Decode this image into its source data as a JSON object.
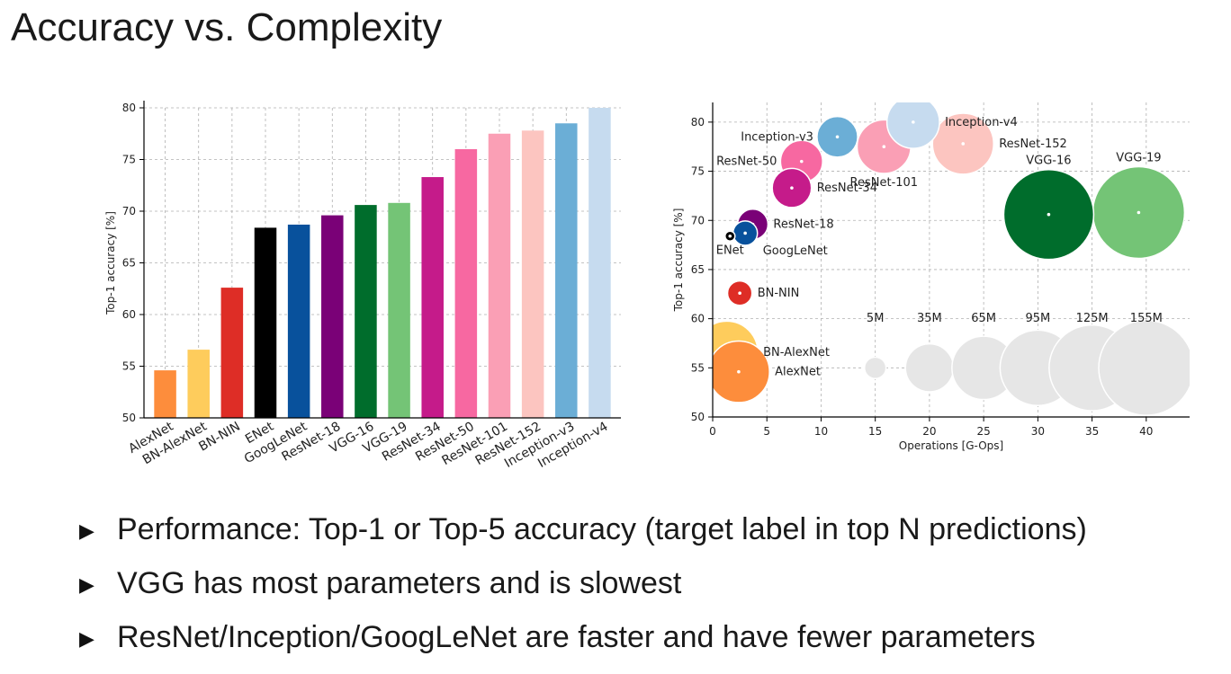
{
  "slide": {
    "title": "Accuracy vs. Complexity",
    "bullets": [
      "Performance: Top-1 or Top-5 accuracy (target label in top N predictions)",
      "VGG has most parameters and is slowest",
      "ResNet/Inception/GoogLeNet are faster and have fewer parameters"
    ]
  },
  "chart_data": [
    {
      "type": "bar",
      "ylabel": "Top-1 accuracy [%]",
      "ylim": [
        50,
        80
      ],
      "yticks": [
        "50",
        "55",
        "60",
        "65",
        "70",
        "75",
        "80"
      ],
      "grid": true,
      "categories": [
        "AlexNet",
        "BN-AlexNet",
        "BN-NIN",
        "ENet",
        "GoogLeNet",
        "ResNet-18",
        "VGG-16",
        "VGG-19",
        "ResNet-34",
        "ResNet-50",
        "ResNet-101",
        "ResNet-152",
        "Inception-v3",
        "Inception-v4"
      ],
      "values": [
        54.6,
        56.6,
        62.6,
        68.4,
        68.7,
        69.6,
        70.6,
        70.8,
        73.3,
        76.0,
        77.5,
        77.8,
        78.5,
        80.0
      ],
      "colors": [
        "#fd8d3c",
        "#fecc5c",
        "#de2d26",
        "#000000",
        "#08519c",
        "#7a0177",
        "#006d2c",
        "#74c476",
        "#c51b8a",
        "#f768a1",
        "#fa9fb5",
        "#fcc5c0",
        "#6baed6",
        "#c6dbef"
      ]
    },
    {
      "type": "scatter",
      "xlabel": "Operations [G-Ops]",
      "ylabel": "Top-1 accuracy [%]",
      "xlim": [
        0,
        44
      ],
      "ylim": [
        50,
        82
      ],
      "xticks": [
        "0",
        "5",
        "10",
        "15",
        "20",
        "25",
        "30",
        "35",
        "40"
      ],
      "yticks": [
        "50",
        "55",
        "60",
        "65",
        "70",
        "75",
        "80"
      ],
      "grid": true,
      "points": [
        {
          "name": "AlexNet",
          "x": 2.4,
          "y": 54.6,
          "params_m": 61,
          "color": "#fd8d3c",
          "label_pos": "right"
        },
        {
          "name": "BN-AlexNet",
          "x": 1.3,
          "y": 56.6,
          "params_m": 62,
          "color": "#fecc5c",
          "label_pos": "right"
        },
        {
          "name": "BN-NIN",
          "x": 2.5,
          "y": 62.6,
          "params_m": 7,
          "color": "#de2d26",
          "label_pos": "right"
        },
        {
          "name": "ENet",
          "x": 1.6,
          "y": 68.4,
          "params_m": 0.4,
          "color": "#000000",
          "label_pos": "below"
        },
        {
          "name": "GoogLeNet",
          "x": 3.0,
          "y": 68.7,
          "params_m": 7,
          "color": "#08519c",
          "label_pos": "below-right"
        },
        {
          "name": "ResNet-18",
          "x": 3.7,
          "y": 69.6,
          "params_m": 12,
          "color": "#7a0177",
          "label_pos": "right"
        },
        {
          "name": "ResNet-34",
          "x": 7.3,
          "y": 73.3,
          "params_m": 22,
          "color": "#c51b8a",
          "label_pos": "right"
        },
        {
          "name": "ResNet-50",
          "x": 8.2,
          "y": 76.0,
          "params_m": 26,
          "color": "#f768a1",
          "label_pos": "left"
        },
        {
          "name": "Inception-v3",
          "x": 11.5,
          "y": 78.5,
          "params_m": 24,
          "color": "#6baed6",
          "label_pos": "left"
        },
        {
          "name": "ResNet-101",
          "x": 15.8,
          "y": 77.5,
          "params_m": 45,
          "color": "#fa9fb5",
          "label_pos": "below"
        },
        {
          "name": "Inception-v4",
          "x": 18.5,
          "y": 80.0,
          "params_m": 43,
          "color": "#c6dbef",
          "label_pos": "right"
        },
        {
          "name": "ResNet-152",
          "x": 23.1,
          "y": 77.8,
          "params_m": 60,
          "color": "#fcc5c0",
          "label_pos": "right"
        },
        {
          "name": "VGG-16",
          "x": 31.0,
          "y": 70.6,
          "params_m": 138,
          "color": "#006d2c",
          "label_pos": "above"
        },
        {
          "name": "VGG-19",
          "x": 39.3,
          "y": 70.8,
          "params_m": 144,
          "color": "#74c476",
          "label_pos": "above"
        }
      ],
      "size_legend": [
        {
          "label": "5M",
          "x": 15,
          "y": 55,
          "params_m": 5
        },
        {
          "label": "35M",
          "x": 20,
          "y": 55,
          "params_m": 35
        },
        {
          "label": "65M",
          "x": 25,
          "y": 55,
          "params_m": 65
        },
        {
          "label": "95M",
          "x": 30,
          "y": 55,
          "params_m": 95
        },
        {
          "label": "125M",
          "x": 35,
          "y": 55,
          "params_m": 125
        },
        {
          "label": "155M",
          "x": 40,
          "y": 55,
          "params_m": 155
        }
      ],
      "size_legend_color": "#e6e6e6"
    }
  ]
}
